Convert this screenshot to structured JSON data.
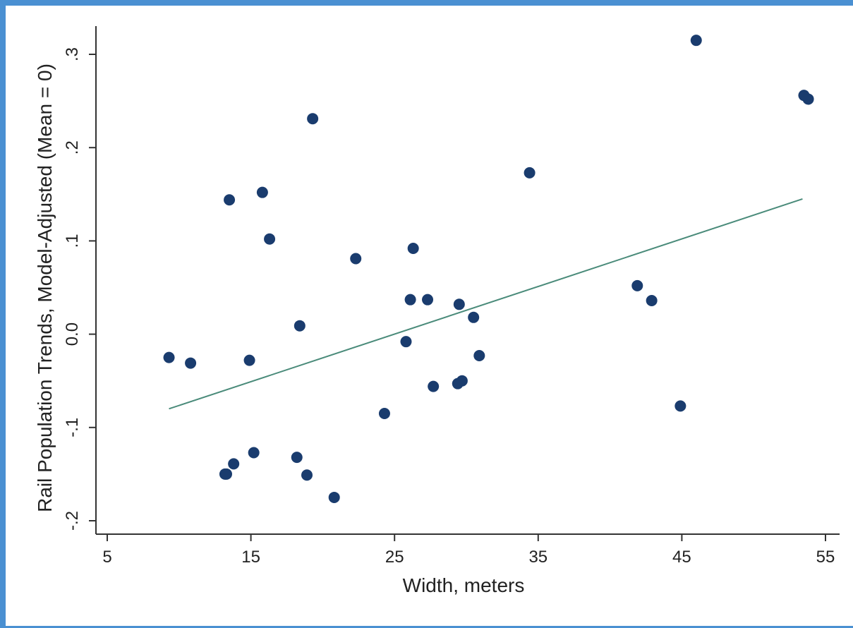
{
  "chart_data": {
    "type": "scatter",
    "title": "",
    "xlabel": "Width, meters",
    "ylabel": "Rail Population Trends, Model-Adjusted (Mean = 0)",
    "xlim": [
      5,
      55
    ],
    "ylim": [
      -0.2,
      0.3
    ],
    "x_ticks": [
      5,
      15,
      25,
      35,
      45,
      55
    ],
    "x_tick_labels": [
      "5",
      "15",
      "25",
      "35",
      "45",
      "55"
    ],
    "y_ticks": [
      -0.2,
      -0.1,
      0,
      0.1,
      0.2,
      0.3
    ],
    "y_tick_labels": [
      "-.2",
      "-.1",
      "0.0",
      ".1",
      ".2",
      ".3"
    ],
    "grid": false,
    "marker_color": "#1a3c6e",
    "fit_line_color": "#4a8b7a",
    "points": [
      {
        "x": 9.3,
        "y": -0.025
      },
      {
        "x": 10.8,
        "y": -0.031
      },
      {
        "x": 13.2,
        "y": -0.15
      },
      {
        "x": 13.3,
        "y": -0.15
      },
      {
        "x": 13.5,
        "y": 0.144
      },
      {
        "x": 13.8,
        "y": -0.139
      },
      {
        "x": 14.9,
        "y": -0.028
      },
      {
        "x": 15.2,
        "y": -0.127
      },
      {
        "x": 15.8,
        "y": 0.152
      },
      {
        "x": 16.3,
        "y": 0.102
      },
      {
        "x": 18.2,
        "y": -0.132
      },
      {
        "x": 18.4,
        "y": 0.009
      },
      {
        "x": 18.9,
        "y": -0.151
      },
      {
        "x": 19.3,
        "y": 0.231
      },
      {
        "x": 20.8,
        "y": -0.175
      },
      {
        "x": 22.3,
        "y": 0.081
      },
      {
        "x": 24.3,
        "y": -0.085
      },
      {
        "x": 25.8,
        "y": -0.008
      },
      {
        "x": 26.1,
        "y": 0.037
      },
      {
        "x": 26.3,
        "y": 0.092
      },
      {
        "x": 27.3,
        "y": 0.037
      },
      {
        "x": 27.7,
        "y": -0.056
      },
      {
        "x": 29.4,
        "y": -0.053
      },
      {
        "x": 29.5,
        "y": 0.032
      },
      {
        "x": 29.7,
        "y": -0.05
      },
      {
        "x": 30.5,
        "y": 0.018
      },
      {
        "x": 30.9,
        "y": -0.023
      },
      {
        "x": 34.4,
        "y": 0.173
      },
      {
        "x": 41.9,
        "y": 0.052
      },
      {
        "x": 42.9,
        "y": 0.036
      },
      {
        "x": 44.9,
        "y": -0.077
      },
      {
        "x": 46.0,
        "y": 0.315
      },
      {
        "x": 53.5,
        "y": 0.256
      },
      {
        "x": 53.8,
        "y": 0.252
      }
    ],
    "fit_line": {
      "x": [
        9.3,
        53.4
      ],
      "y": [
        -0.08,
        0.145
      ]
    }
  }
}
